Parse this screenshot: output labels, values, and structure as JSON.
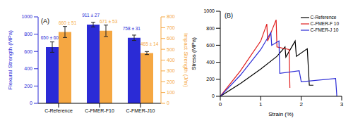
{
  "chart_data": [
    {
      "type": "bar",
      "title": "(A)",
      "categories": [
        "C-Reference",
        "C-FMER-F10",
        "C-FMER-J10"
      ],
      "y_label": "Flexural Strength (MPa)",
      "y2_label": "Impact Strength (J/m)",
      "ylim": [
        0,
        1000
      ],
      "yticks": [
        0,
        200,
        400,
        600,
        800,
        1000
      ],
      "y2lim": [
        0,
        800
      ],
      "y2ticks": [
        0,
        100,
        200,
        300,
        400,
        500,
        600,
        700,
        800
      ],
      "data_labels": true,
      "series": [
        {
          "color": "#2b2bd6",
          "values": [
            650,
            911,
            758
          ],
          "errors": [
            60,
            27,
            31
          ],
          "value_labels": [
            "650 ± 60",
            "911 ± 27",
            "758 ± 31"
          ]
        },
        {
          "color": "#f5a742",
          "axis": "y2",
          "values": [
            660,
            671,
            465
          ],
          "errors": [
            51,
            53,
            14
          ],
          "value_labels": [
            "660 ± 51",
            "671 ± 53",
            "465 ± 14"
          ]
        }
      ]
    },
    {
      "type": "line",
      "title": "(B)",
      "x_label": "Strain (%)",
      "y_label": "Stress (MPa)",
      "xlim": [
        0,
        3
      ],
      "xticks": [
        0,
        1,
        2,
        3
      ],
      "ylim": [
        0,
        1000
      ],
      "yticks": [
        0,
        200,
        400,
        600,
        800,
        1000
      ],
      "legend": "upper right",
      "series": [
        {
          "name": "C-Reference",
          "color": "#000000",
          "x": [
            0,
            0.5,
            1.0,
            1.4,
            1.6,
            1.62,
            1.85,
            1.88,
            2.15,
            2.2,
            2.3
          ],
          "values": [
            0,
            150,
            320,
            470,
            580,
            460,
            650,
            470,
            560,
            130,
            130
          ]
        },
        {
          "name": "C-FMER-F 10",
          "color": "#e01b1b",
          "x": [
            0,
            0.5,
            1.0,
            1.15,
            1.17,
            1.38,
            1.4,
            1.7,
            1.72
          ],
          "values": [
            0,
            300,
            650,
            850,
            650,
            900,
            580,
            550,
            100
          ]
        },
        {
          "name": "C-FMER-J 10",
          "color": "#2b2bd6",
          "x": [
            0,
            0.5,
            1.0,
            1.25,
            1.27,
            1.45,
            1.47,
            1.95,
            2.0,
            2.85,
            2.88
          ],
          "values": [
            0,
            250,
            550,
            750,
            600,
            650,
            270,
            300,
            170,
            210,
            0
          ]
        }
      ]
    }
  ]
}
